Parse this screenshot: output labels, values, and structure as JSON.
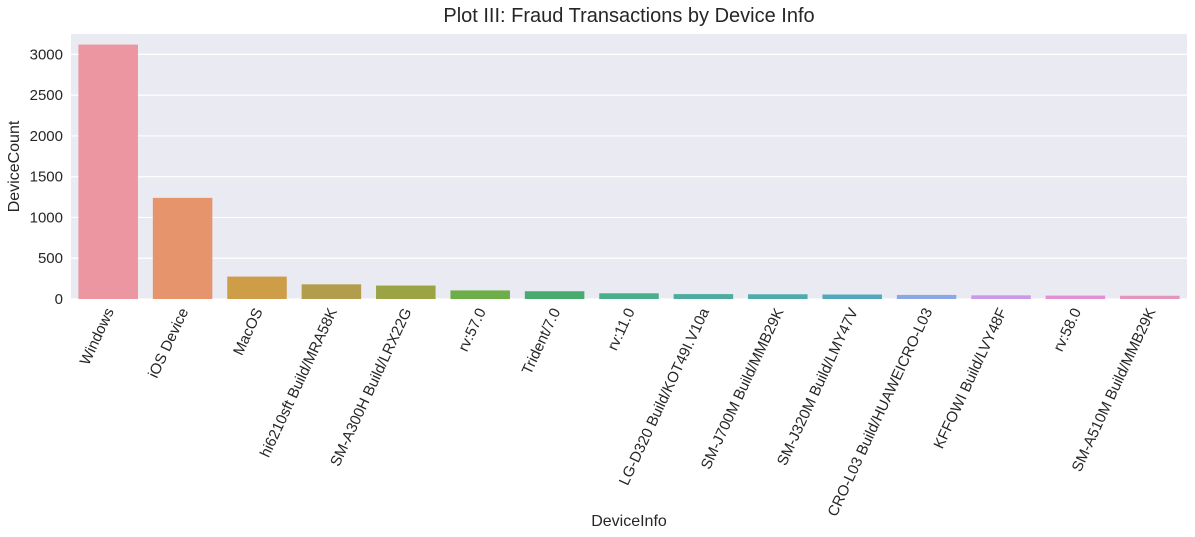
{
  "chart_data": {
    "type": "bar",
    "title": "Plot III: Fraud Transactions by Device Info",
    "xlabel": "DeviceInfo",
    "ylabel": "DeviceCount",
    "ylim": [
      0,
      3250
    ],
    "yticks": [
      0,
      500,
      1000,
      1500,
      2000,
      2500,
      3000
    ],
    "grid": true,
    "legend": "none",
    "categories": [
      "Windows",
      "iOS Device",
      "MacOS",
      "hi6210sft Build/MRA58K",
      "SM-A300H Build/LRX22G",
      "rv:57.0",
      "Trident/7.0",
      "rv:11.0",
      "LG-D320 Build/KOT49I.V10a",
      "SM-J700M Build/MMB29K",
      "SM-J320M Build/LMY47V",
      "CRO-L03 Build/HUAWEICRO-L03",
      "KFFOWI Build/LVY48F",
      "rv:58.0",
      "SM-A510M Build/MMB29K"
    ],
    "values": [
      3120,
      1240,
      275,
      180,
      165,
      105,
      95,
      70,
      60,
      58,
      55,
      50,
      45,
      42,
      40
    ],
    "colors": [
      "#EB96A0",
      "#E6946C",
      "#CE9D48",
      "#B19D4B",
      "#9BA345",
      "#6DAE48",
      "#47AB70",
      "#4AAE8D",
      "#4BAC9F",
      "#4DABAC",
      "#52A9BE",
      "#8BA7E6",
      "#CA9AE8",
      "#E290D3",
      "#E594BE"
    ],
    "background_color": "#EAEAF2",
    "grid_color": "#FFFFFF"
  }
}
